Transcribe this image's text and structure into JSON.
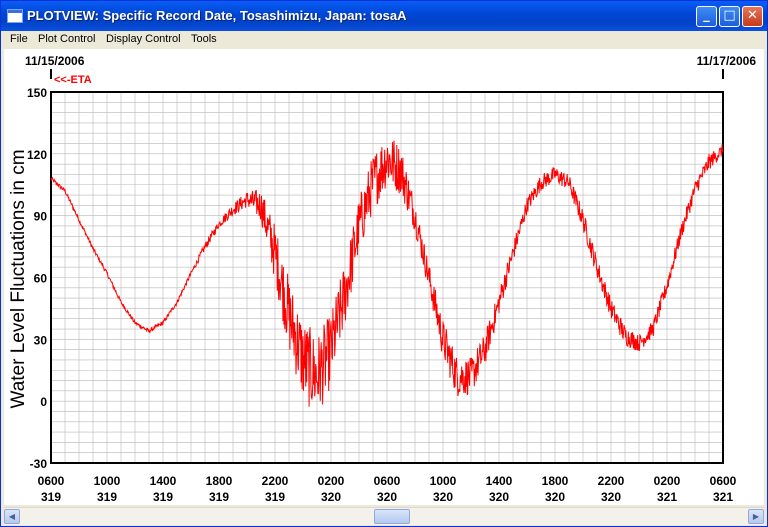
{
  "window": {
    "title": "PLOTVIEW: Specific Record Date, Tosashimizu, Japan: tosaA",
    "controls": {
      "minimize": "_",
      "maximize": "□",
      "close": "✕"
    }
  },
  "menu": [
    "File",
    "Plot Control",
    "Display Control",
    "Tools"
  ],
  "plot": {
    "start_date": "11/15/2006",
    "end_date": "11/17/2006",
    "eta_marker": "<<-ETA"
  },
  "chart_data": {
    "type": "line",
    "ylabel": "Water Level Fluctuations in cm",
    "xlabel": "",
    "ylim": [
      -30,
      150
    ],
    "yticks": [
      -30,
      0,
      30,
      60,
      90,
      120,
      150
    ],
    "xlim_hours": [
      6,
      54
    ],
    "xticks": [
      {
        "time": "0600",
        "day": "319"
      },
      {
        "time": "1000",
        "day": "319"
      },
      {
        "time": "1400",
        "day": "319"
      },
      {
        "time": "1800",
        "day": "319"
      },
      {
        "time": "2200",
        "day": "319"
      },
      {
        "time": "0200",
        "day": "320"
      },
      {
        "time": "0600",
        "day": "320"
      },
      {
        "time": "1000",
        "day": "320"
      },
      {
        "time": "1400",
        "day": "320"
      },
      {
        "time": "1800",
        "day": "320"
      },
      {
        "time": "2200",
        "day": "320"
      },
      {
        "time": "0200",
        "day": "321"
      },
      {
        "time": "0600",
        "day": "321"
      }
    ],
    "grid": true,
    "line_color": "#ff0000",
    "series": [
      {
        "x": [
          6,
          7,
          8,
          9,
          10,
          11,
          12,
          13,
          14,
          15,
          16,
          17,
          18,
          19,
          20,
          21,
          22,
          23,
          24,
          25,
          26,
          27,
          28,
          29,
          30,
          31,
          32,
          33,
          34,
          35,
          36,
          37,
          38,
          39,
          40,
          41,
          42,
          43,
          44,
          45,
          46,
          47,
          48,
          49,
          50,
          51,
          52,
          53,
          54
        ],
        "y": [
          108,
          102,
          88,
          74,
          62,
          48,
          38,
          34,
          38,
          48,
          62,
          75,
          86,
          93,
          98,
          95,
          72,
          42,
          20,
          12,
          25,
          52,
          85,
          106,
          118,
          112,
          90,
          60,
          30,
          12,
          12,
          25,
          48,
          72,
          95,
          106,
          110,
          106,
          88,
          65,
          45,
          32,
          28,
          35,
          56,
          82,
          103,
          116,
          122
        ],
        "noise": [
          1,
          1,
          1,
          1,
          1,
          1,
          1,
          1,
          1,
          1,
          1,
          2,
          2,
          3,
          4,
          8,
          14,
          18,
          20,
          20,
          18,
          16,
          14,
          14,
          14,
          12,
          8,
          7,
          10,
          10,
          9,
          8,
          6,
          5,
          4,
          4,
          4,
          4,
          5,
          5,
          5,
          5,
          4,
          4,
          4,
          4,
          4,
          4,
          3
        ]
      }
    ]
  }
}
